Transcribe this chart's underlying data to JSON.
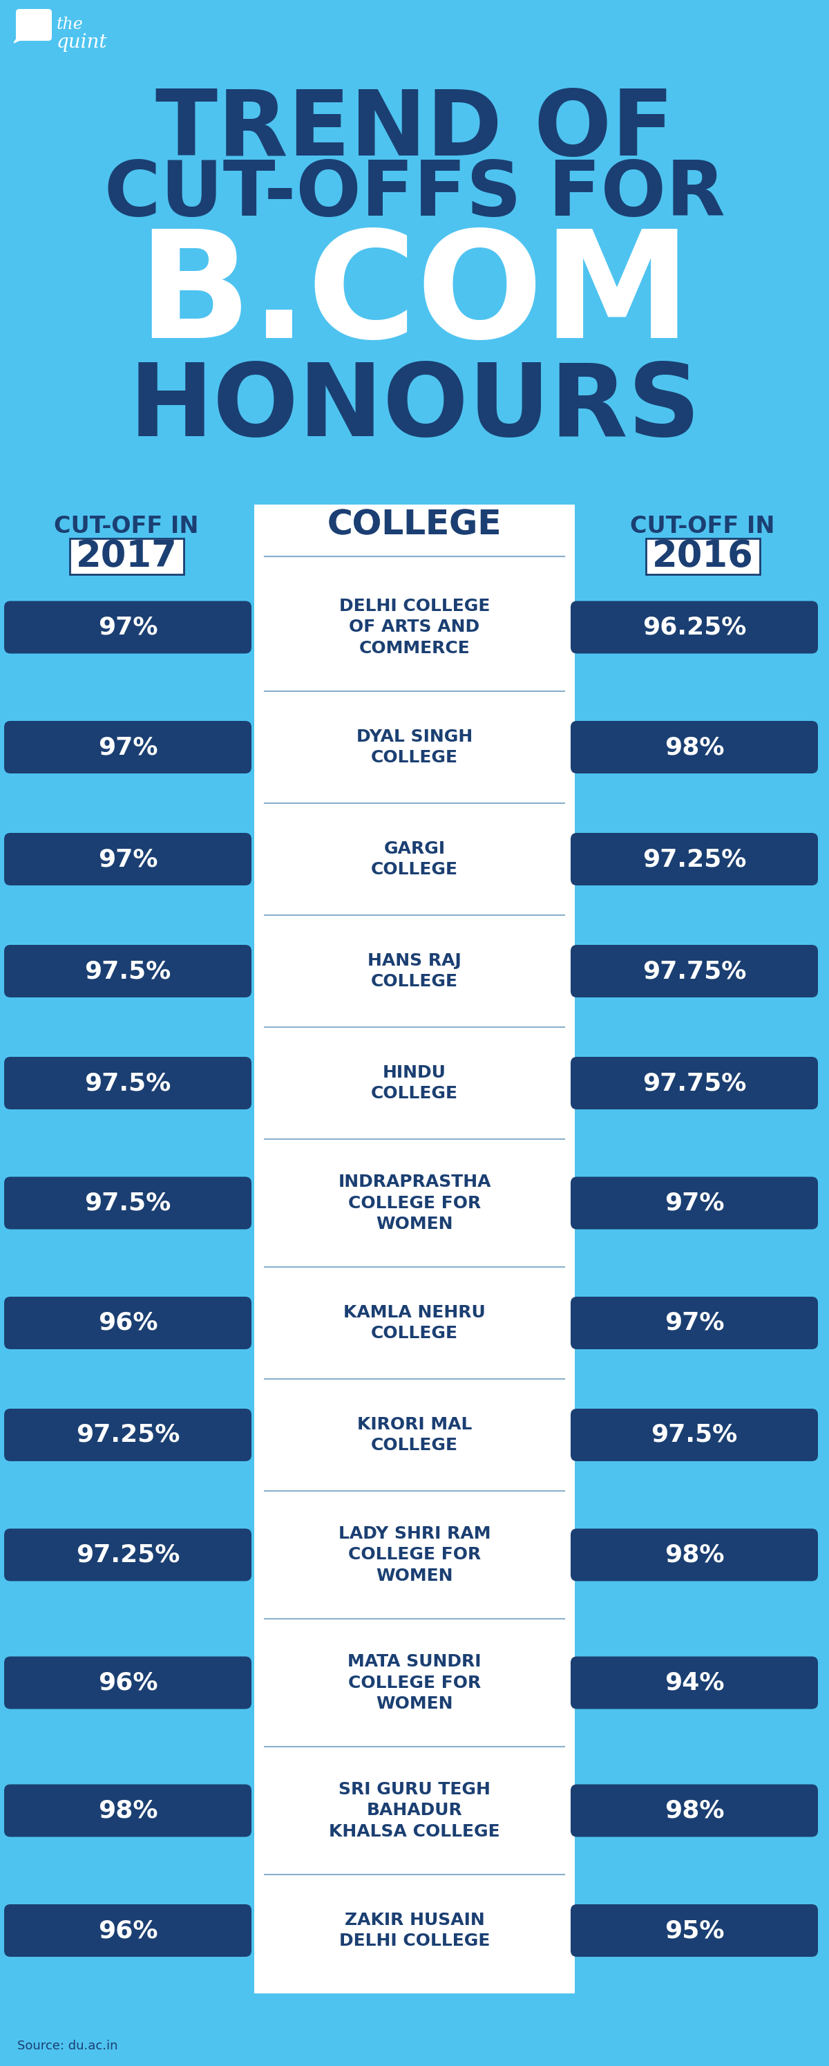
{
  "bg_color": "#4ec3f0",
  "dark_blue": "#1b3f72",
  "white": "#ffffff",
  "bar_color": "#1b3f72",
  "sep_color": "#8ab0cc",
  "title_line1": "TREND OF",
  "title_line2": "CUT-OFFS FOR",
  "title_line3": "B.COM",
  "title_line4": "HONOURS",
  "col_header_left_line1": "CUT-OFF IN",
  "col_header_left_line2": "2017",
  "col_header_center": "COLLEGE",
  "col_header_right_line1": "CUT-OFF IN",
  "col_header_right_line2": "2016",
  "colleges": [
    "DELHI COLLEGE\nOF ARTS AND\nCOMMERCE",
    "DYAL SINGH\nCOLLEGE",
    "GARGI\nCOLLEGE",
    "HANS RAJ\nCOLLEGE",
    "HINDU\nCOLLEGE",
    "INDRAPRASTHA\nCOLLEGE FOR\nWOMEN",
    "KAMLA NEHRU\nCOLLEGE",
    "KIRORI MAL\nCOLLEGE",
    "LADY SHRI RAM\nCOLLEGE FOR\nWOMEN",
    "MATA SUNDRI\nCOLLEGE FOR\nWOMEN",
    "SRI GURU TEGH\nBAHADUR\nKHALSA COLLEGE",
    "ZAKIR HUSAIN\nDELHI COLLEGE"
  ],
  "cutoff_2017": [
    "97%",
    "97%",
    "97%",
    "97.5%",
    "97.5%",
    "97.5%",
    "96%",
    "97.25%",
    "97.25%",
    "96%",
    "98%",
    "96%"
  ],
  "cutoff_2016": [
    "96.25%",
    "98%",
    "97.25%",
    "97.75%",
    "97.75%",
    "97%",
    "97%",
    "97.5%",
    "98%",
    "94%",
    "98%",
    "95%"
  ],
  "source_text": "Source: du.ac.in",
  "logo_text1": "the",
  "logo_text2": "quint"
}
